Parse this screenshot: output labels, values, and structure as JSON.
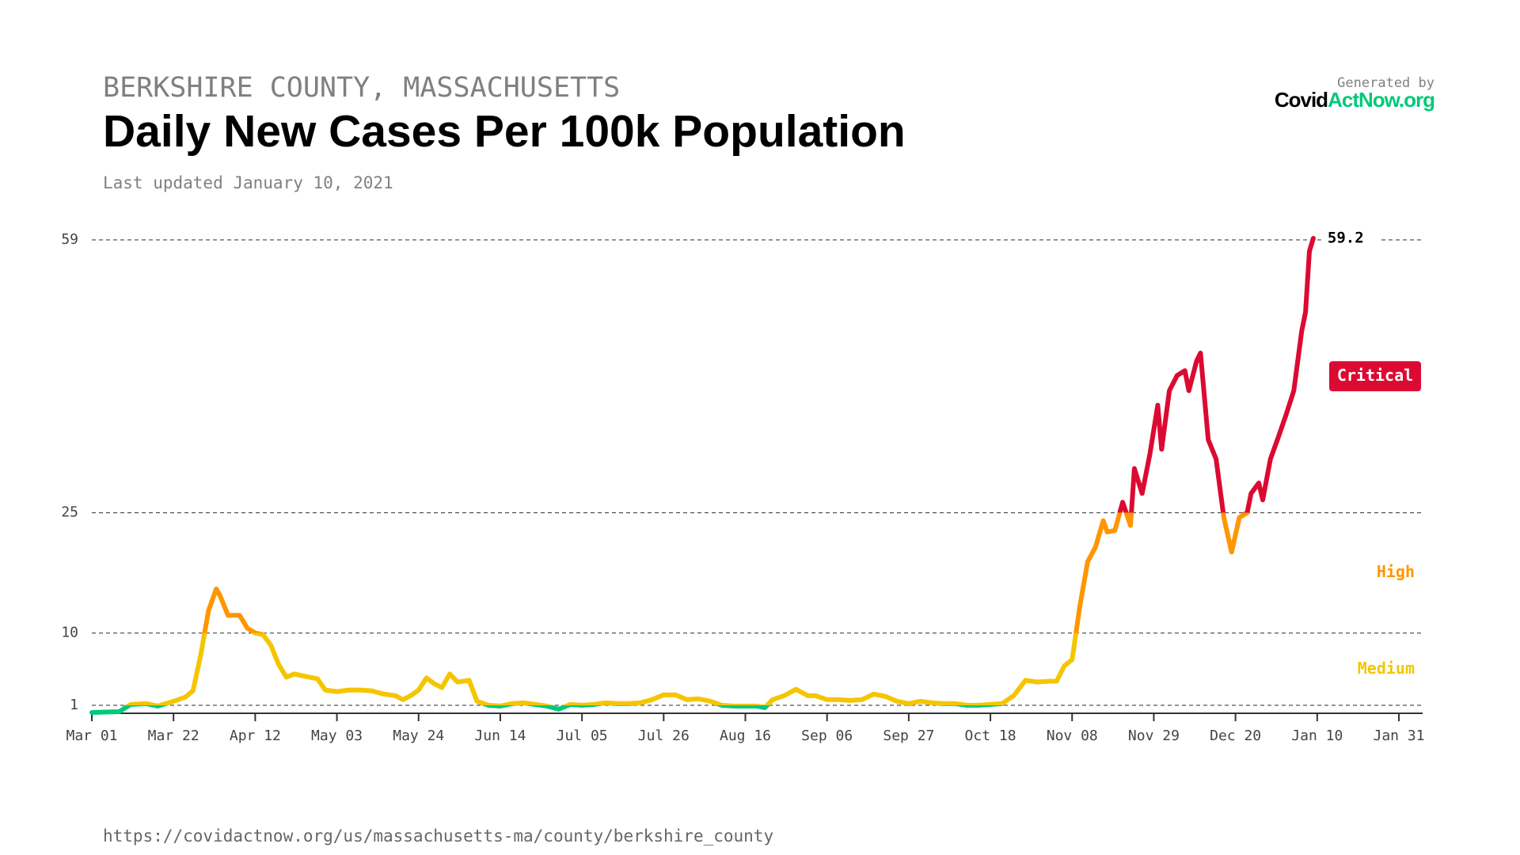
{
  "chart_data": {
    "type": "line",
    "supertitle": "BERKSHIRE COUNTY, MASSACHUSETTS",
    "title": "Daily New Cases Per 100k Population",
    "subtitle": "Last updated January 10, 2021",
    "x": [
      "Mar 01",
      "Mar 08",
      "Mar 11",
      "Mar 15",
      "Mar 18",
      "Mar 22",
      "Mar 25",
      "Mar 27",
      "Mar 29",
      "Mar 31",
      "Apr 02",
      "Apr 03",
      "Apr 05",
      "Apr 08",
      "Apr 10",
      "Apr 12",
      "Apr 14",
      "Apr 16",
      "Apr 18",
      "Apr 20",
      "Apr 22",
      "Apr 25",
      "Apr 28",
      "Apr 30",
      "May 03",
      "May 06",
      "May 09",
      "May 12",
      "May 15",
      "May 18",
      "May 20",
      "May 22",
      "May 24",
      "May 26",
      "May 28",
      "May 30",
      "Jun 01",
      "Jun 03",
      "Jun 06",
      "Jun 08",
      "Jun 11",
      "Jun 14",
      "Jun 17",
      "Jun 20",
      "Jun 23",
      "Jun 26",
      "Jun 29",
      "Jul 02",
      "Jul 05",
      "Jul 08",
      "Jul 11",
      "Jul 14",
      "Jul 17",
      "Jul 20",
      "Jul 23",
      "Jul 26",
      "Jul 29",
      "Aug 01",
      "Aug 04",
      "Aug 07",
      "Aug 10",
      "Aug 13",
      "Aug 16",
      "Aug 19",
      "Aug 21",
      "Aug 23",
      "Aug 26",
      "Aug 29",
      "Sep 01",
      "Sep 03",
      "Sep 06",
      "Sep 09",
      "Sep 12",
      "Sep 15",
      "Sep 18",
      "Sep 21",
      "Sep 24",
      "Sep 27",
      "Sep 30",
      "Oct 03",
      "Oct 06",
      "Oct 09",
      "Oct 12",
      "Oct 15",
      "Oct 18",
      "Oct 21",
      "Oct 24",
      "Oct 27",
      "Oct 30",
      "Nov 02",
      "Nov 04",
      "Nov 06",
      "Nov 08",
      "Nov 10",
      "Nov 12",
      "Nov 14",
      "Nov 16",
      "Nov 17",
      "Nov 19",
      "Nov 21",
      "Nov 23",
      "Nov 24",
      "Nov 26",
      "Nov 28",
      "Nov 30",
      "Dec 01",
      "Dec 03",
      "Dec 05",
      "Dec 07",
      "Dec 08",
      "Dec 10",
      "Dec 11",
      "Dec 13",
      "Dec 15",
      "Dec 17",
      "Dec 19",
      "Dec 21",
      "Dec 23",
      "Dec 24",
      "Dec 26",
      "Dec 27",
      "Dec 29",
      "Dec 31",
      "Jan 02",
      "Jan 04",
      "Jan 06",
      "Jan 07",
      "Jan 08",
      "Jan 09"
    ],
    "values": [
      0.1,
      0.2,
      1.1,
      1.2,
      0.9,
      1.5,
      2.0,
      2.8,
      7.3,
      12.8,
      15.5,
      14.6,
      12.2,
      12.2,
      10.6,
      10.0,
      9.8,
      8.5,
      6.1,
      4.5,
      4.9,
      4.6,
      4.3,
      2.9,
      2.7,
      2.9,
      2.9,
      2.8,
      2.4,
      2.2,
      1.7,
      2.2,
      2.9,
      4.4,
      3.7,
      3.2,
      4.9,
      3.9,
      4.1,
      1.5,
      1.0,
      0.9,
      1.2,
      1.3,
      1.1,
      0.9,
      0.5,
      1.1,
      1.0,
      1.1,
      1.3,
      1.2,
      1.2,
      1.3,
      1.7,
      2.3,
      2.3,
      1.7,
      1.8,
      1.5,
      1.0,
      0.9,
      0.9,
      0.9,
      0.7,
      1.7,
      2.2,
      3.0,
      2.2,
      2.2,
      1.7,
      1.7,
      1.6,
      1.7,
      2.4,
      2.1,
      1.5,
      1.2,
      1.5,
      1.3,
      1.2,
      1.2,
      1.0,
      1.0,
      1.1,
      1.2,
      2.2,
      4.1,
      3.9,
      4.0,
      4.0,
      5.9,
      6.7,
      13.4,
      18.9,
      20.7,
      24.0,
      22.6,
      22.8,
      26.3,
      23.4,
      30.5,
      27.4,
      32.3,
      38.4,
      32.9,
      40.2,
      42.1,
      42.7,
      40.2,
      43.9,
      44.9,
      34.1,
      31.7,
      24.4,
      20.1,
      24.4,
      25.0,
      27.4,
      28.7,
      26.6,
      31.7,
      34.4,
      37.2,
      40.2,
      47.6,
      50.0,
      57.6,
      59.2
    ],
    "xlim": [
      "Mar 01",
      "Jan 31"
    ],
    "xticks": [
      "Mar 01",
      "Mar 22",
      "Apr 12",
      "May 03",
      "May 24",
      "Jun 14",
      "Jul 05",
      "Jul 26",
      "Aug 16",
      "Sep 06",
      "Sep 27",
      "Oct 18",
      "Nov 08",
      "Nov 29",
      "Dec 20",
      "Jan 10",
      "Jan 31"
    ],
    "ylim": [
      0,
      59
    ],
    "yticks": [
      1,
      10,
      25,
      59
    ],
    "grid": true,
    "low_color": "#00c979",
    "levels": [
      {
        "label": "Medium",
        "from": 1,
        "to": 10,
        "color": "#f5c500"
      },
      {
        "label": "High",
        "from": 10,
        "to": 25,
        "color": "#ff9600"
      },
      {
        "label": "Critical",
        "from": 25,
        "to": 59,
        "color": "#dc0a32"
      }
    ]
  },
  "branding": {
    "generated_by": "Generated by",
    "logo_dark": "Covid",
    "logo_green": "ActNow.org"
  },
  "url": "https://covidactnow.org/us/massachusetts-ma/county/berkshire_county"
}
